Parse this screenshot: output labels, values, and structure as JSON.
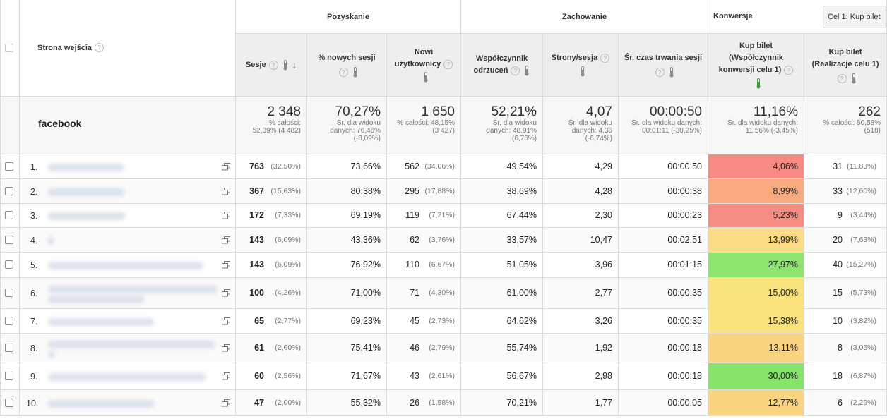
{
  "header": {
    "primary_dimension": "Strona wejścia",
    "groups": {
      "acquisition": "Pozyskanie",
      "behavior": "Zachowanie",
      "conversions": "Konwersje"
    },
    "goal_select": "Cel 1: Kup bilet",
    "columns": [
      {
        "key": "sessions",
        "l1": "Sesje"
      },
      {
        "key": "new_sessions",
        "l1": "% nowych sesji"
      },
      {
        "key": "new_users",
        "l1": "Nowi",
        "l2": "użytkownicy"
      },
      {
        "key": "bounce",
        "l1": "Współczynnik",
        "l2": "odrzuceń"
      },
      {
        "key": "pages",
        "l1": "Strony/sesja"
      },
      {
        "key": "duration",
        "l1": "Śr. czas trwania sesji"
      },
      {
        "key": "conv_rate",
        "l1": "Kup bilet",
        "l2": "(Współczynnik",
        "l3": "konwersji celu 1)"
      },
      {
        "key": "completions",
        "l1": "Kup bilet",
        "l2": "(Realizacje celu 1)"
      }
    ]
  },
  "segment": "facebook",
  "totals": [
    {
      "big": "2 348",
      "s1": "% całości:",
      "s2": "52,39% (4 482)"
    },
    {
      "big": "70,27%",
      "s1": "Śr. dla widoku",
      "s2": "danych: 76,46%",
      "s3": "(-8,09%)"
    },
    {
      "big": "1 650",
      "s1": "% całości: 48,15%",
      "s2": "(3 427)"
    },
    {
      "big": "52,21%",
      "s1": "Śr. dla widoku",
      "s2": "danych: 48,91%",
      "s3": "(6,76%)"
    },
    {
      "big": "4,07",
      "s1": "Śr. dla widoku",
      "s2": "danych: 4,36",
      "s3": "(-6,74%)"
    },
    {
      "big": "00:00:50",
      "s1": "Śr. dla widoku danych:",
      "s2": "00:01:11 (-30,25%)"
    },
    {
      "big": "11,16%",
      "s1": "Śr. dla widoku danych:",
      "s2": "11,56% (-3,45%)"
    },
    {
      "big": "262",
      "s1": "% całości: 50,58%",
      "s2": "(518)"
    }
  ],
  "rows": [
    {
      "idx": "1.",
      "sessions": "763",
      "sessions_pct": "(32,50%)",
      "new_sessions": "73,66%",
      "new_users": "562",
      "new_users_pct": "(34,06%)",
      "bounce": "49,54%",
      "pages": "4,29",
      "duration": "00:00:50",
      "conv": "4,06%",
      "conv_color": "#f78a82",
      "comp": "31",
      "comp_pct": "(11,83%)"
    },
    {
      "idx": "2.",
      "sessions": "367",
      "sessions_pct": "(15,63%)",
      "new_sessions": "80,38%",
      "new_users": "295",
      "new_users_pct": "(17,88%)",
      "bounce": "38,69%",
      "pages": "4,28",
      "duration": "00:00:38",
      "conv": "8,99%",
      "conv_color": "#f9ab80",
      "comp": "33",
      "comp_pct": "(12,60%)"
    },
    {
      "idx": "3.",
      "sessions": "172",
      "sessions_pct": "(7,33%)",
      "new_sessions": "69,19%",
      "new_users": "119",
      "new_users_pct": "(7,21%)",
      "bounce": "67,44%",
      "pages": "2,30",
      "duration": "00:00:23",
      "conv": "5,23%",
      "conv_color": "#f78d82",
      "comp": "9",
      "comp_pct": "(3,44%)"
    },
    {
      "idx": "4.",
      "sessions": "143",
      "sessions_pct": "(6,09%)",
      "new_sessions": "43,36%",
      "new_users": "62",
      "new_users_pct": "(3,76%)",
      "bounce": "33,57%",
      "pages": "10,47",
      "duration": "00:02:51",
      "conv": "13,99%",
      "conv_color": "#fbdb85",
      "comp": "20",
      "comp_pct": "(7,63%)"
    },
    {
      "idx": "5.",
      "sessions": "143",
      "sessions_pct": "(6,09%)",
      "new_sessions": "76,92%",
      "new_users": "110",
      "new_users_pct": "(6,67%)",
      "bounce": "51,05%",
      "pages": "3,96",
      "duration": "00:01:15",
      "conv": "27,97%",
      "conv_color": "#8ee46e",
      "comp": "40",
      "comp_pct": "(15,27%)"
    },
    {
      "idx": "6.",
      "sessions": "100",
      "sessions_pct": "(4,26%)",
      "new_sessions": "71,00%",
      "new_users": "71",
      "new_users_pct": "(4,30%)",
      "bounce": "61,00%",
      "pages": "2,77",
      "duration": "00:00:35",
      "conv": "15,00%",
      "conv_color": "#fae37d",
      "comp": "15",
      "comp_pct": "(5,73%)"
    },
    {
      "idx": "7.",
      "sessions": "65",
      "sessions_pct": "(2,77%)",
      "new_sessions": "69,23%",
      "new_users": "45",
      "new_users_pct": "(2,73%)",
      "bounce": "64,62%",
      "pages": "3,26",
      "duration": "00:00:35",
      "conv": "15,38%",
      "conv_color": "#fae37d",
      "comp": "10",
      "comp_pct": "(3,82%)"
    },
    {
      "idx": "8.",
      "sessions": "61",
      "sessions_pct": "(2,60%)",
      "new_sessions": "75,41%",
      "new_users": "46",
      "new_users_pct": "(2,79%)",
      "bounce": "55,74%",
      "pages": "1,92",
      "duration": "00:00:18",
      "conv": "13,11%",
      "conv_color": "#fbd481",
      "comp": "8",
      "comp_pct": "(3,05%)"
    },
    {
      "idx": "9.",
      "sessions": "60",
      "sessions_pct": "(2,56%)",
      "new_sessions": "71,67%",
      "new_users": "43",
      "new_users_pct": "(2,61%)",
      "bounce": "56,67%",
      "pages": "2,98",
      "duration": "00:00:18",
      "conv": "30,00%",
      "conv_color": "#86e36c",
      "comp": "18",
      "comp_pct": "(6,87%)"
    },
    {
      "idx": "10.",
      "sessions": "47",
      "sessions_pct": "(2,00%)",
      "new_sessions": "55,32%",
      "new_users": "26",
      "new_users_pct": "(1,58%)",
      "bounce": "70,21%",
      "pages": "1,77",
      "duration": "00:00:05",
      "conv": "12,77%",
      "conv_color": "#fbd482",
      "comp": "6",
      "comp_pct": "(2,29%)"
    }
  ]
}
